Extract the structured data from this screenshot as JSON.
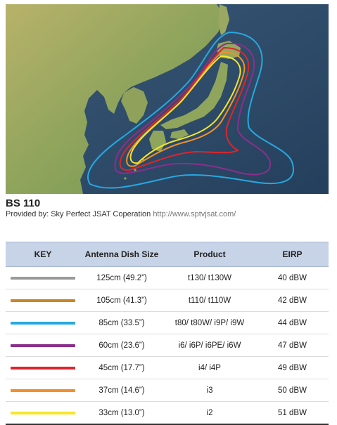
{
  "map": {
    "sea": "#2f4c6b",
    "land": "#9aa863"
  },
  "title": "BS 110",
  "provided": {
    "label": "Provided by: Sky Perfect JSAT Coperation",
    "url": "http://www.sptvjsat.com/"
  },
  "table": {
    "headers": {
      "key": "KEY",
      "dish": "Antenna Dish Size",
      "product": "Product",
      "eirp": "EIRP"
    },
    "rows": [
      {
        "color": "#9a9a9a",
        "dish": "125cm (49.2”)",
        "product": "t130/ t130W",
        "eirp": "40 dBW"
      },
      {
        "color": "#c8862a",
        "dish": "105cm (41.3”)",
        "product": "t110/ t110W",
        "eirp": "42 dBW"
      },
      {
        "color": "#27a8e0",
        "dish": "85cm (33.5”)",
        "product": "t80/ t80W/ i9P/ i9W",
        "eirp": "44 dBW"
      },
      {
        "color": "#8b2f8c",
        "dish": "60cm (23.6”)",
        "product": "i6/ i6P/ i6PE/ i6W",
        "eirp": "47 dBW"
      },
      {
        "color": "#e0242b",
        "dish": "45cm (17.7”)",
        "product": "i4/ i4P",
        "eirp": "49 dBW"
      },
      {
        "color": "#f0902e",
        "dish": "37cm (14.6”)",
        "product": "i3",
        "eirp": "50 dBW"
      },
      {
        "color": "#f6e629",
        "dish": "33cm (13.0”)",
        "product": "i2",
        "eirp": "51 dBW"
      }
    ]
  }
}
